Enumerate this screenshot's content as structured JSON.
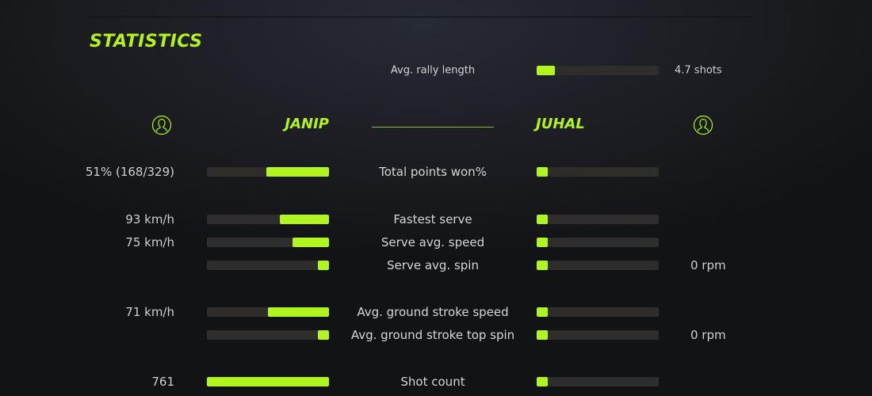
{
  "title": "STATISTICS",
  "colors": {
    "accent": "#b0f51f",
    "track": "#2f2c2c"
  },
  "rally": {
    "label": "Avg. rally length",
    "value": "4.7 shots",
    "fill": 0.15
  },
  "players": {
    "left": {
      "name": "JANIP",
      "icon": "user-circle-icon"
    },
    "right": {
      "name": "JUHAL",
      "icon": "user-circle-icon"
    }
  },
  "rows": [
    {
      "label": "Total points won%",
      "left_value": "51% (168/329)",
      "right_value": "",
      "left_fill": 0.51,
      "right_fill": 0.09
    },
    {
      "label": "Fastest serve",
      "left_value": "93 km/h",
      "right_value": "",
      "left_fill": 0.4,
      "right_fill": 0.09
    },
    {
      "label": "Serve avg. speed",
      "left_value": "75 km/h",
      "right_value": "",
      "left_fill": 0.3,
      "right_fill": 0.09
    },
    {
      "label": "Serve avg. spin",
      "left_value": "",
      "right_value": "0 rpm",
      "left_fill": 0.09,
      "right_fill": 0.09
    },
    {
      "label": "Avg. ground stroke speed",
      "left_value": "71 km/h",
      "right_value": "",
      "left_fill": 0.5,
      "right_fill": 0.09
    },
    {
      "label": "Avg. ground stroke top spin",
      "left_value": "",
      "right_value": "0 rpm",
      "left_fill": 0.09,
      "right_fill": 0.09
    },
    {
      "label": "Shot count",
      "left_value": "761",
      "right_value": "",
      "left_fill": 1.0,
      "right_fill": 0.09
    }
  ]
}
